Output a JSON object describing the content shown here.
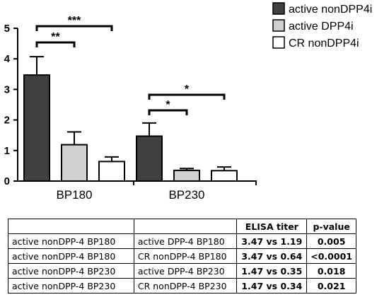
{
  "chart_data": {
    "type": "bar",
    "categories": [
      "BP180",
      "BP230"
    ],
    "series": [
      {
        "name": "active nonDPP4i",
        "values": [
          3.47,
          1.47
        ],
        "errors": [
          0.6,
          0.43
        ],
        "color": "#404040"
      },
      {
        "name": "active DPP4i",
        "values": [
          1.19,
          0.35
        ],
        "errors": [
          0.42,
          0.06
        ],
        "color": "#d0d0d0"
      },
      {
        "name": "CR nonDPP4i",
        "values": [
          0.64,
          0.34
        ],
        "errors": [
          0.15,
          0.12
        ],
        "color": "#ffffff"
      }
    ],
    "ylim": [
      0,
      5
    ],
    "yticks": [
      "0",
      "1",
      "2",
      "3",
      "4",
      "5"
    ],
    "legend_position": "top-right",
    "significance": [
      {
        "category": "BP180",
        "from": "active nonDPP4i",
        "to": "active DPP4i",
        "label": "**"
      },
      {
        "category": "BP180",
        "from": "active nonDPP4i",
        "to": "CR nonDPP4i",
        "label": "***"
      },
      {
        "category": "BP230",
        "from": "active nonDPP4i",
        "to": "active DPP4i",
        "label": "*"
      },
      {
        "category": "BP230",
        "from": "active nonDPP4i",
        "to": "CR nonDPP4i",
        "label": "*"
      }
    ]
  },
  "table": {
    "headers": [
      "",
      "",
      "ELISA titer",
      "p-value"
    ],
    "rows": [
      [
        "active nonDPP-4 BP180",
        "active DPP-4 BP180",
        "3.47 vs 1.19",
        "0.005"
      ],
      [
        "active nonDPP-4 BP180",
        "CR nonDPP-4 BP180",
        "3.47 vs 0.64",
        "<0.0001"
      ],
      [
        "active nonDPP-4 BP230",
        "active DPP-4 BP230",
        "1.47 vs 0.35",
        "0.018"
      ],
      [
        "active nonDPP-4 BP230",
        "CR nonDPP-4 BP230",
        "1.47 vs 0.34",
        "0.021"
      ]
    ]
  }
}
